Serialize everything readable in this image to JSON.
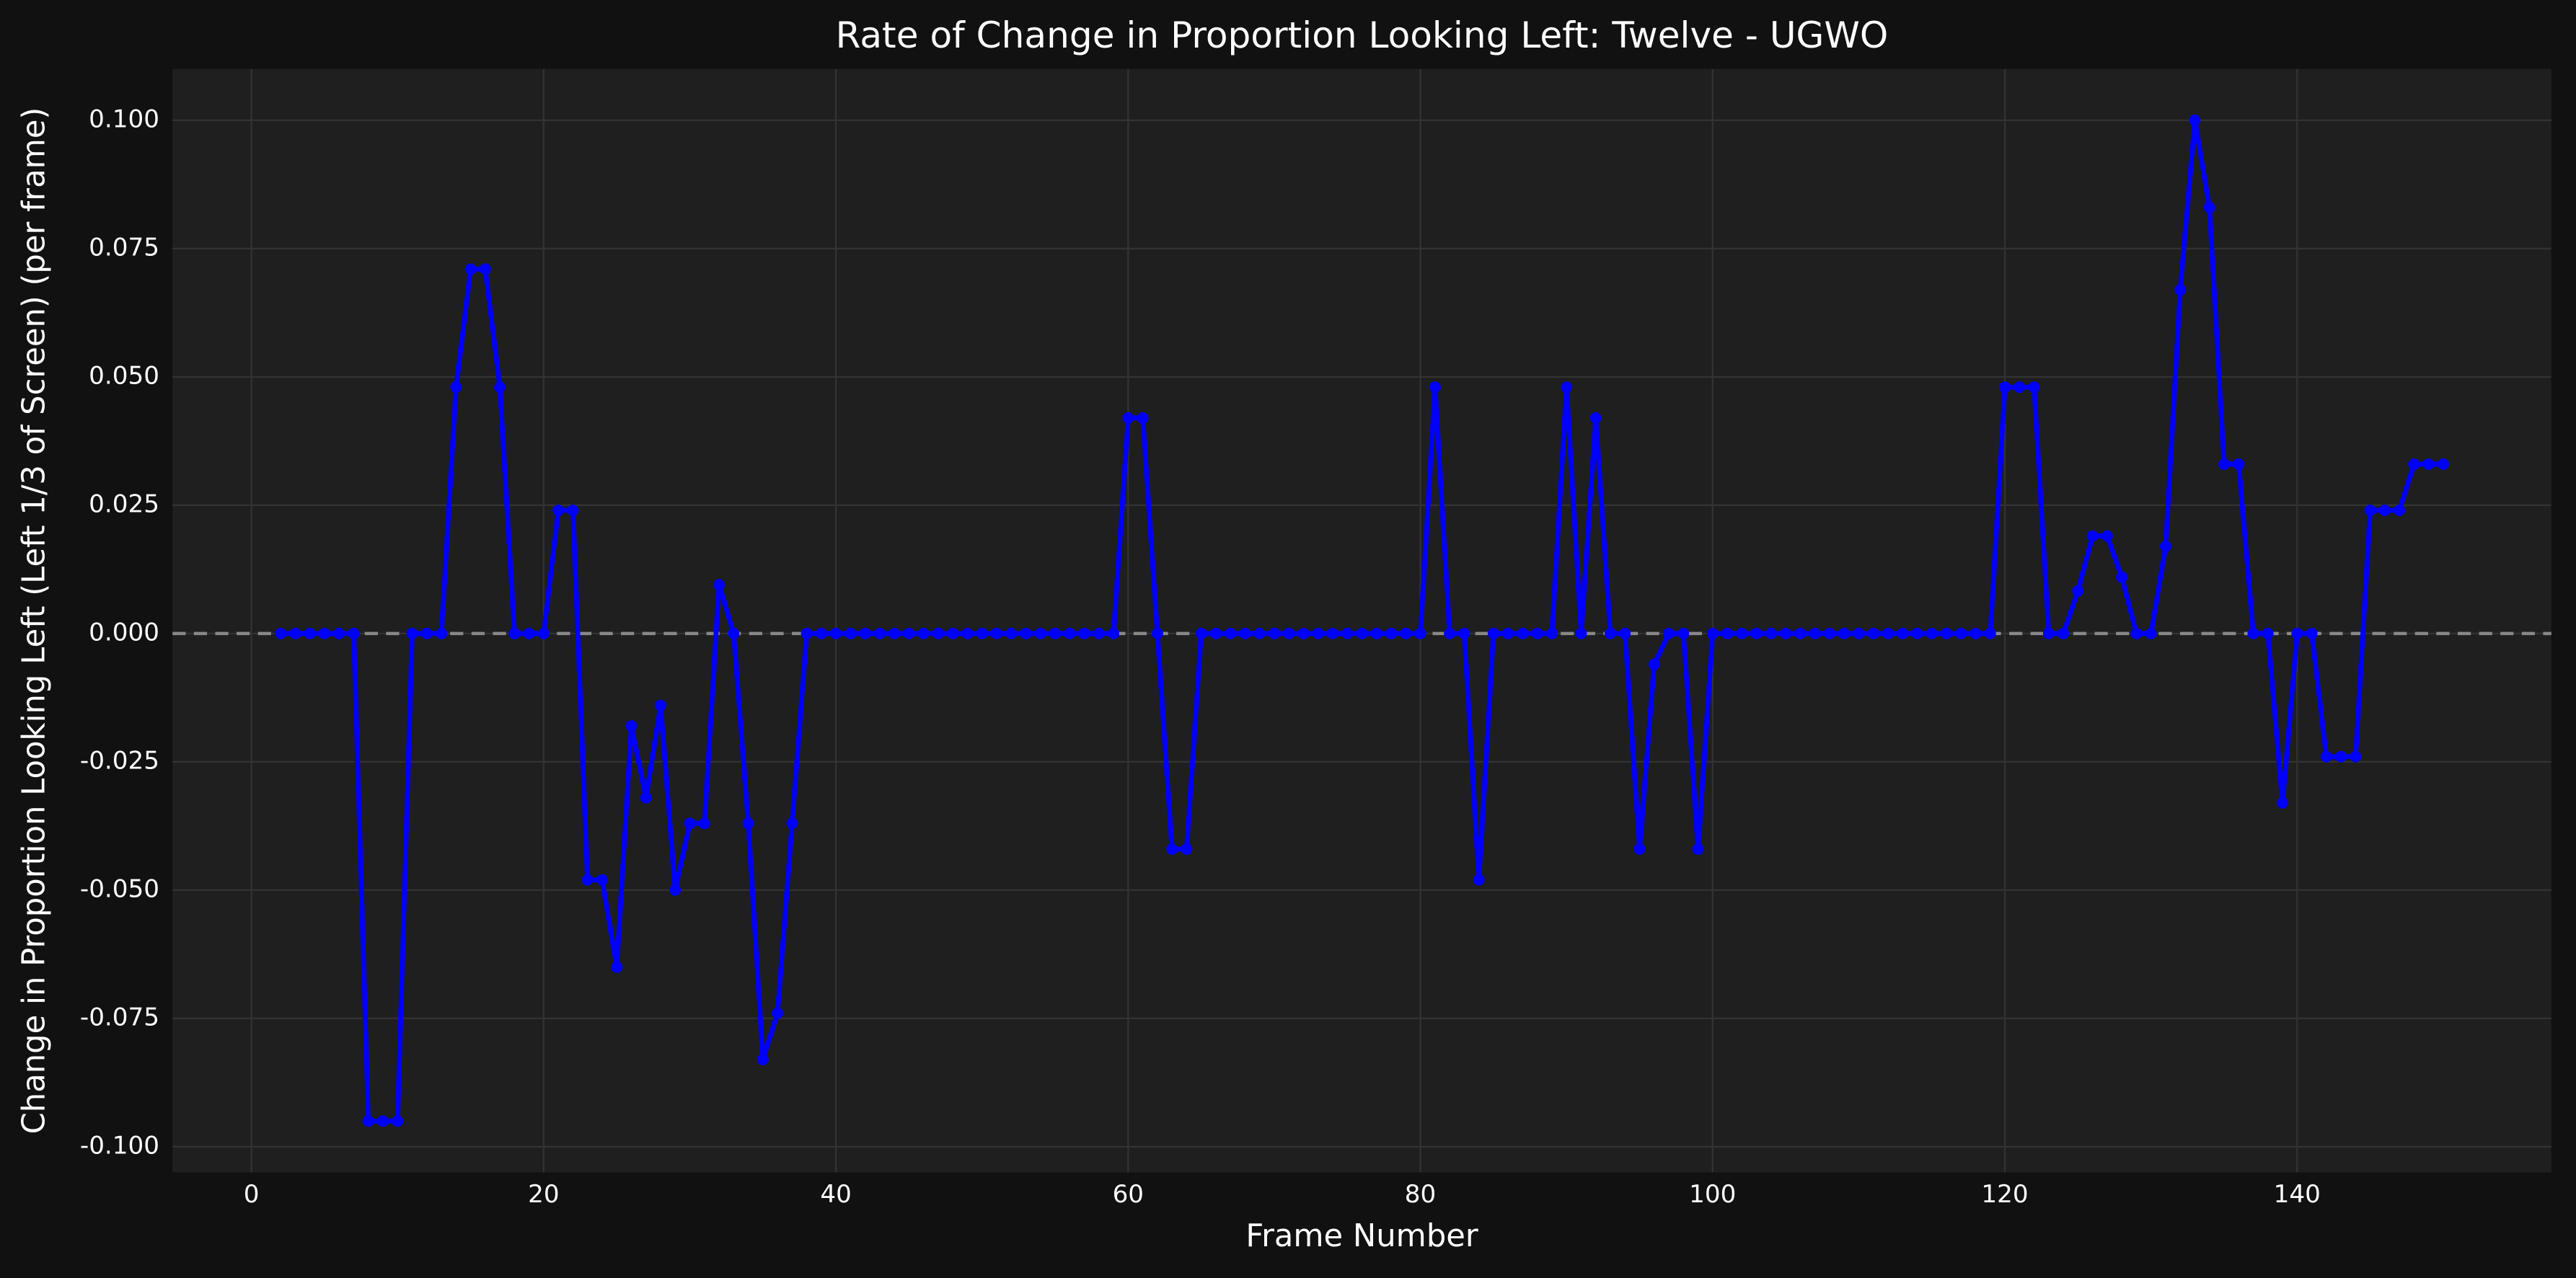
{
  "chart_data": {
    "type": "line",
    "title": "Rate of Change in Proportion Looking Left: Twelve - UGWO",
    "x_label": "Frame Number",
    "y_label": "Change in Proportion Looking Left (Left 1/3 of Screen) (per frame)",
    "color": "#0000ff",
    "grid": true,
    "reference_line": 0,
    "xlim": [
      -5.4,
      157.4
    ],
    "ylim": [
      -0.105,
      0.11
    ],
    "xticks": [
      0,
      20,
      40,
      60,
      80,
      100,
      120,
      140
    ],
    "yticks": [
      {
        "value": -0.1,
        "label": "-0.100"
      },
      {
        "value": -0.075,
        "label": "-0.075"
      },
      {
        "value": -0.05,
        "label": "-0.050"
      },
      {
        "value": -0.025,
        "label": "-0.025"
      },
      {
        "value": 0,
        "label": "0.000"
      },
      {
        "value": 0.025,
        "label": "0.025"
      },
      {
        "value": 0.05,
        "label": "0.050"
      },
      {
        "value": 0.075,
        "label": "0.075"
      },
      {
        "value": 0.1,
        "label": "0.100"
      }
    ],
    "x": [
      2,
      3,
      4,
      5,
      6,
      7,
      8,
      9,
      10,
      11,
      12,
      13,
      14,
      15,
      16,
      17,
      18,
      19,
      20,
      21,
      22,
      23,
      24,
      25,
      26,
      27,
      28,
      29,
      30,
      31,
      32,
      33,
      34,
      35,
      36,
      37,
      38,
      39,
      40,
      41,
      42,
      43,
      44,
      45,
      46,
      47,
      48,
      49,
      50,
      51,
      52,
      53,
      54,
      55,
      56,
      57,
      58,
      59,
      60,
      61,
      62,
      63,
      64,
      65,
      66,
      67,
      68,
      69,
      70,
      71,
      72,
      73,
      74,
      75,
      76,
      77,
      78,
      79,
      80,
      81,
      82,
      83,
      84,
      85,
      86,
      87,
      88,
      89,
      90,
      91,
      92,
      93,
      94,
      95,
      96,
      97,
      98,
      99,
      100,
      101,
      102,
      103,
      104,
      105,
      106,
      107,
      108,
      109,
      110,
      111,
      112,
      113,
      114,
      115,
      116,
      117,
      118,
      119,
      120,
      121,
      122,
      123,
      124,
      125,
      126,
      127,
      128,
      129,
      130,
      131,
      132,
      133,
      134,
      135,
      136,
      137,
      138,
      139,
      140,
      141,
      142,
      143,
      144,
      145,
      146,
      147,
      148,
      149,
      150
    ],
    "values": [
      0,
      0,
      0,
      0,
      0,
      0,
      -0.095,
      -0.095,
      -0.095,
      0,
      0,
      0,
      0.048,
      0.071,
      0.071,
      0.048,
      0,
      0,
      0,
      0.024,
      0.024,
      -0.048,
      -0.048,
      -0.065,
      -0.018,
      -0.032,
      -0.014,
      -0.05,
      -0.037,
      -0.037,
      0.0095,
      0,
      -0.037,
      -0.083,
      -0.074,
      -0.037,
      0,
      0,
      0,
      0,
      0,
      0,
      0,
      0,
      0,
      0,
      0,
      0,
      0,
      0,
      0,
      0,
      0,
      0,
      0,
      0,
      0,
      0,
      0.042,
      0.042,
      0,
      -0.042,
      -0.042,
      0,
      0,
      0,
      0,
      0,
      0,
      0,
      0,
      0,
      0,
      0,
      0,
      0,
      0,
      0,
      0,
      0.048,
      0,
      0,
      -0.048,
      0,
      0,
      0,
      0,
      0,
      0.048,
      0,
      0.042,
      0,
      0,
      -0.042,
      -0.006,
      0,
      0,
      -0.042,
      0,
      0,
      0,
      0,
      0,
      0,
      0,
      0,
      0,
      0,
      0,
      0,
      0,
      0,
      0,
      0,
      0,
      0,
      0,
      0,
      0.048,
      0.048,
      0.048,
      0,
      0,
      0.0083,
      0.019,
      0.019,
      0.011,
      0,
      0,
      0.017,
      0.067,
      0.1,
      0.083,
      0.033,
      0.033,
      0,
      0,
      -0.033,
      0,
      0,
      -0.024,
      -0.024,
      -0.024,
      0.024,
      0.024,
      0.024,
      0.033,
      0.033,
      0.033
    ]
  }
}
